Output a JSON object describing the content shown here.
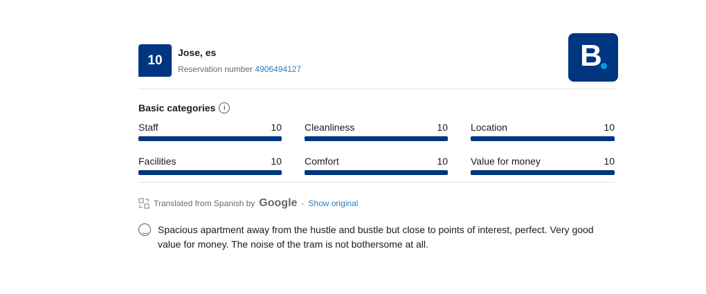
{
  "review": {
    "score": "10",
    "reviewer": "Jose, es",
    "reservation_label": "Reservation number",
    "reservation_number": "4906494127"
  },
  "brand": {
    "logo_letter": "B.",
    "color": "#003580"
  },
  "categories_title": "Basic categories",
  "categories": [
    {
      "label": "Staff",
      "score": "10",
      "fill": 1.0
    },
    {
      "label": "Cleanliness",
      "score": "10",
      "fill": 1.0
    },
    {
      "label": "Location",
      "score": "10",
      "fill": 1.0
    },
    {
      "label": "Facilities",
      "score": "10",
      "fill": 1.0
    },
    {
      "label": "Comfort",
      "score": "10",
      "fill": 1.0
    },
    {
      "label": "Value for money",
      "score": "10",
      "fill": 1.0
    }
  ],
  "translation": {
    "text": "Translated from Spanish by",
    "provider": "Google",
    "separator": "-",
    "show_original": "Show original"
  },
  "review_text": "Spacious apartment away from the hustle and bustle but close to points of interest, perfect. Very good value for money. The noise of the tram is not bothersome at all."
}
